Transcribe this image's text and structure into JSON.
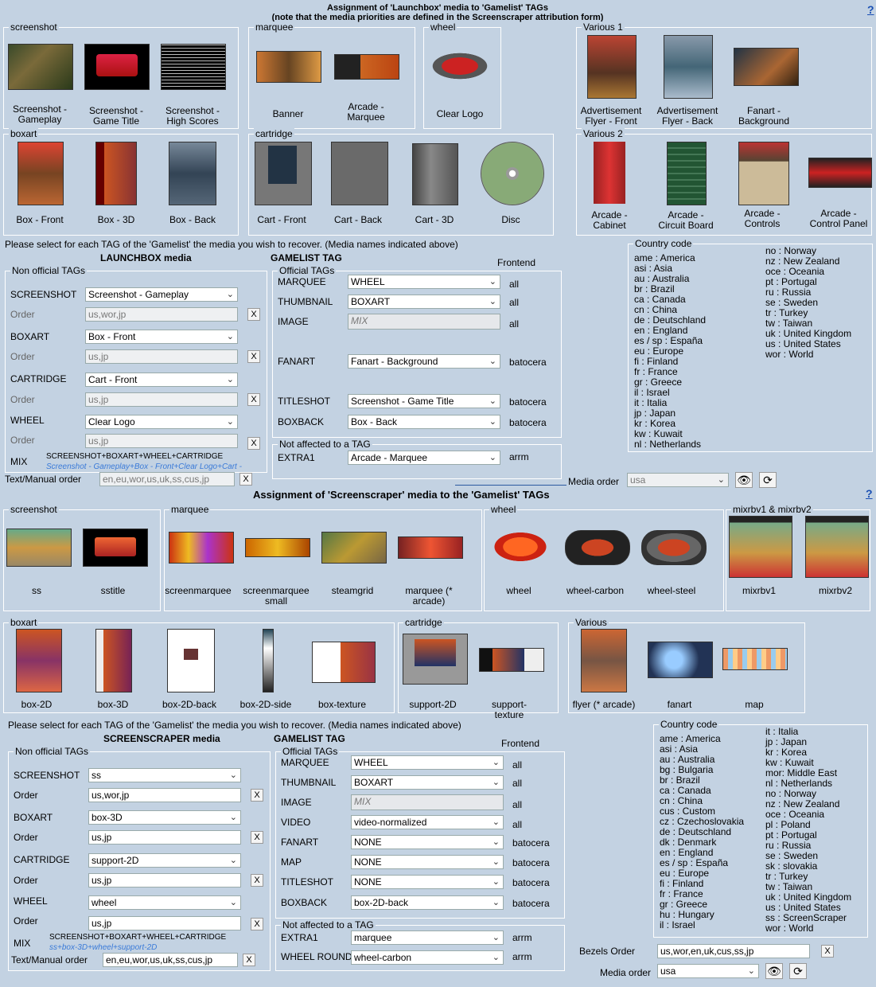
{
  "top": {
    "title_line1": "Assignment of 'Launchbox' media to 'Gamelist' TAGs",
    "title_line2": "(note that the media priorities are defined in the Screenscraper attribution form)",
    "help": "?",
    "groups": {
      "screenshot": {
        "label": "screenshot",
        "items": [
          "Screenshot - Gameplay",
          "Screenshot - Game Title",
          "Screenshot - High Scores"
        ]
      },
      "marquee": {
        "label": "marquee",
        "items": [
          "Banner",
          "Arcade - Marquee"
        ]
      },
      "wheel": {
        "label": "wheel",
        "items": [
          "Clear Logo"
        ]
      },
      "various1": {
        "label": "Various 1",
        "items": [
          "Advertisement Flyer - Front",
          "Advertisement Flyer - Back",
          "Fanart - Background"
        ]
      },
      "boxart": {
        "label": "boxart",
        "items": [
          "Box - Front",
          "Box - 3D",
          "Box - Back"
        ]
      },
      "cartridge": {
        "label": "cartridge",
        "items": [
          "Cart - Front",
          "Cart - Back",
          "Cart - 3D",
          "Disc"
        ]
      },
      "various2": {
        "label": "Various 2",
        "items": [
          "Arcade - Cabinet",
          "Arcade - Circuit Board",
          "Arcade - Controls",
          "Arcade - Control Panel"
        ]
      }
    },
    "instruction": "Please select for each TAG of the 'Gamelist' the media you wish to recover. (Media names indicated above)",
    "launchbox_header": "LAUNCHBOX media",
    "gamelist_header": "GAMELIST TAG",
    "frontend_header": "Frontend",
    "non_official_label": "Non official TAGs",
    "official_label": "Official TAGs",
    "not_affected_label": "Not affected to a TAG",
    "order_label": "Order",
    "rows": [
      {
        "tag": "SCREENSHOT",
        "value": "Screenshot - Gameplay",
        "order": "us,wor,jp"
      },
      {
        "tag": "BOXART",
        "value": "Box - Front",
        "order": "us,jp"
      },
      {
        "tag": "CARTRIDGE",
        "value": "Cart - Front",
        "order": "us,jp"
      },
      {
        "tag": "WHEEL",
        "value": "Clear Logo",
        "order": "us,jp"
      }
    ],
    "mix_label": "MIX",
    "mix_formula": "SCREENSHOT+BOXART+WHEEL+CARTRIDGE",
    "mix_detail": "Screenshot - Gameplay+Box - Front+Clear Logo+Cart -",
    "text_manual_label": "Text/Manual order",
    "text_manual_value": "en,eu,wor,us,uk,ss,cus,jp",
    "official": [
      {
        "tag": "MARQUEE",
        "value": "WHEEL",
        "frontend": "all"
      },
      {
        "tag": "THUMBNAIL",
        "value": "BOXART",
        "frontend": "all"
      },
      {
        "tag": "IMAGE",
        "value": "MIX",
        "frontend": "all"
      },
      {
        "tag": "FANART",
        "value": "Fanart - Background",
        "frontend": "batocera"
      },
      {
        "tag": "TITLESHOT",
        "value": "Screenshot - Game Title",
        "frontend": "batocera"
      },
      {
        "tag": "BOXBACK",
        "value": "Box - Back",
        "frontend": "batocera"
      }
    ],
    "not_affected": [
      {
        "tag": "EXTRA1",
        "value": "Arcade - Marquee",
        "frontend": "arrm"
      }
    ],
    "media_order_label": "Media order",
    "media_order_value": "usa",
    "country_label": "Country code",
    "country_col1": "ame : America\nasi : Asia\nau : Australia\nbr : Brazil\nca : Canada\ncn : China\nde : Deutschland\nen : England\nes / sp : España\neu : Europe\nfi : Finland\nfr : France\ngr : Greece\nil : Israel\nit : Italia\njp : Japan\nkr : Korea\nkw : Kuwait\nnl : Netherlands",
    "country_col2": "no : Norway\nnz : New Zealand\noce : Oceania\npt : Portugal\nru : Russia\nse : Sweden\ntr : Turkey\ntw : Taiwan\nuk : United Kingdom\nus : United States\nwor : World"
  },
  "bottom": {
    "title": "Assignment of 'Screenscraper' media to the 'Gamelist' TAGs",
    "help": "?",
    "groups": {
      "screenshot": {
        "label": "screenshot",
        "items": [
          "ss",
          "sstitle"
        ]
      },
      "marquee": {
        "label": "marquee",
        "items": [
          "screenmarquee",
          "screenmarquee small",
          "steamgrid",
          "marquee (* arcade)"
        ]
      },
      "wheel": {
        "label": "wheel",
        "items": [
          "wheel",
          "wheel-carbon",
          "wheel-steel"
        ]
      },
      "mixrbv": {
        "label": "mixrbv1 & mixrbv2",
        "items": [
          "mixrbv1",
          "mixrbv2"
        ]
      },
      "boxart": {
        "label": "boxart",
        "items": [
          "box-2D",
          "box-3D",
          "box-2D-back",
          "box-2D-side",
          "box-texture"
        ]
      },
      "cartridge": {
        "label": "cartridge",
        "items": [
          "support-2D",
          "support-texture"
        ]
      },
      "various": {
        "label": "Various",
        "items": [
          "flyer (* arcade)",
          "fanart",
          "map"
        ]
      }
    },
    "instruction": "Please select for each TAG of the 'Gamelist' the media you wish to recover. (Media names indicated above)",
    "ss_header": "SCREENSCRAPER media",
    "gamelist_header": "GAMELIST TAG",
    "frontend_header": "Frontend",
    "non_official_label": "Non official TAGs",
    "official_label": "Official TAGs",
    "not_affected_label": "Not affected to a TAG",
    "order_label": "Order",
    "rows": [
      {
        "tag": "SCREENSHOT",
        "value": "ss",
        "order": "us,wor,jp"
      },
      {
        "tag": "BOXART",
        "value": "box-3D",
        "order": "us,jp"
      },
      {
        "tag": "CARTRIDGE",
        "value": "support-2D",
        "order": "us,jp"
      },
      {
        "tag": "WHEEL",
        "value": "wheel",
        "order": "us,jp"
      }
    ],
    "mix_label": "MIX",
    "mix_formula": "SCREENSHOT+BOXART+WHEEL+CARTRIDGE",
    "mix_detail": "ss+box-3D+wheel+support-2D",
    "text_manual_label": "Text/Manual order",
    "text_manual_value": "en,eu,wor,us,uk,ss,cus,jp",
    "official": [
      {
        "tag": "MARQUEE",
        "value": "WHEEL",
        "frontend": "all"
      },
      {
        "tag": "THUMBNAIL",
        "value": "BOXART",
        "frontend": "all"
      },
      {
        "tag": "IMAGE",
        "value": "MIX",
        "frontend": "all"
      },
      {
        "tag": "VIDEO",
        "value": "video-normalized",
        "frontend": "all"
      },
      {
        "tag": "FANART",
        "value": "NONE",
        "frontend": "batocera"
      },
      {
        "tag": "MAP",
        "value": "NONE",
        "frontend": "batocera"
      },
      {
        "tag": "TITLESHOT",
        "value": "NONE",
        "frontend": "batocera"
      },
      {
        "tag": "BOXBACK",
        "value": "box-2D-back",
        "frontend": "batocera"
      }
    ],
    "not_affected": [
      {
        "tag": "EXTRA1",
        "value": "marquee",
        "frontend": "arrm"
      },
      {
        "tag": "WHEEL ROUND",
        "value": "wheel-carbon",
        "frontend": "arrm"
      }
    ],
    "bezels_label": "Bezels Order",
    "bezels_value": "us,wor,en,uk,cus,ss,jp",
    "media_order_label": "Media order",
    "media_order_value": "usa",
    "country_label": "Country code",
    "country_col1": "ame : America\nasi : Asia\nau : Australia\nbg : Bulgaria\nbr : Brazil\nca : Canada\ncn : China\ncus : Custom\ncz : Czechoslovakia\nde : Deutschland\ndk : Denmark\nen : England\nes / sp : España\neu : Europe\nfi : Finland\nfr : France\ngr : Greece\nhu : Hungary\nil : Israel",
    "country_col2": "it : Italia\njp : Japan\nkr : Korea\nkw : Kuwait\nmor: Middle East\nnl : Netherlands\nno : Norway\nnz : New Zealand\noce : Oceania\npl : Poland\npt : Portugal\nru : Russia\nse : Sweden\nsk : slovakia\ntr : Turkey\ntw : Taiwan\nuk : United Kingdom\nus : United States\nss : ScreenScraper\nwor : World"
  }
}
